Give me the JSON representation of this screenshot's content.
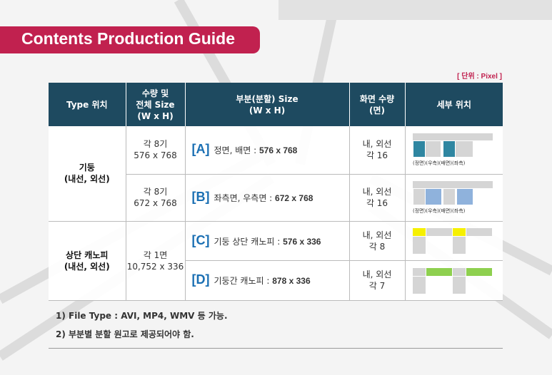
{
  "title": "Contents Production Guide",
  "unit_label": "[ 단위 : Pixel ]",
  "colors": {
    "title_bar": "#c1214f",
    "header_bg": "#1e4a60",
    "accent_letter": "#1a6fb3",
    "teal_block": "#2f86a1",
    "blue_block": "#8fb2dc",
    "yellow_block": "#f6f000",
    "green_block": "#8ed04f",
    "gray_block": "#d5d5d5"
  },
  "table": {
    "headers": {
      "type": "Type 위치",
      "size_l1": "수량 및",
      "size_l2": "전체 Size",
      "size_l3": "(W x H)",
      "part_l1": "부분(분할) Size",
      "part_l2": "(W x H)",
      "screens_l1": "화면 수량",
      "screens_l2": "(면)",
      "detail": "세부 위치"
    },
    "groups": [
      {
        "type_l1": "기둥",
        "type_l2": "(내선, 외선)"
      },
      {
        "type_l1": "상단 캐노피",
        "type_l2": "(내선, 외선)",
        "qty_l1": "각 1면",
        "qty_l2": "10,752 x 336"
      }
    ],
    "rows": [
      {
        "qty_l1": "각 8기",
        "qty_l2": "576 x 768",
        "letter": "[A]",
        "desc": "정면, 배면 : ",
        "size": "576 x 768",
        "screens_l1": "내, 외선",
        "screens_l2": "각 16",
        "detail_labels": "(정면)(우측)(배면)(좌측)"
      },
      {
        "qty_l1": "각 8기",
        "qty_l2": "672 x 768",
        "letter": "[B]",
        "desc": "좌측면, 우측면 : ",
        "size": "672 x 768",
        "screens_l1": "내, 외선",
        "screens_l2": "각 16",
        "detail_labels": "(정면)(우측)(배면)(좌측)"
      },
      {
        "letter": "[C]",
        "desc": "기둥 상단 캐노피  : ",
        "size": "576 x 336",
        "screens_l1": "내, 외선",
        "screens_l2": "각 8"
      },
      {
        "letter": "[D]",
        "desc": "기둥간 캐노피 : ",
        "size": "878 x 336",
        "screens_l1": "내, 외선",
        "screens_l2": "각 7"
      }
    ]
  },
  "notes": [
    "1) File Type : AVI, MP4, WMV 등 가능.",
    "2) 부분별 분할 원고로 제공되어야 함."
  ]
}
